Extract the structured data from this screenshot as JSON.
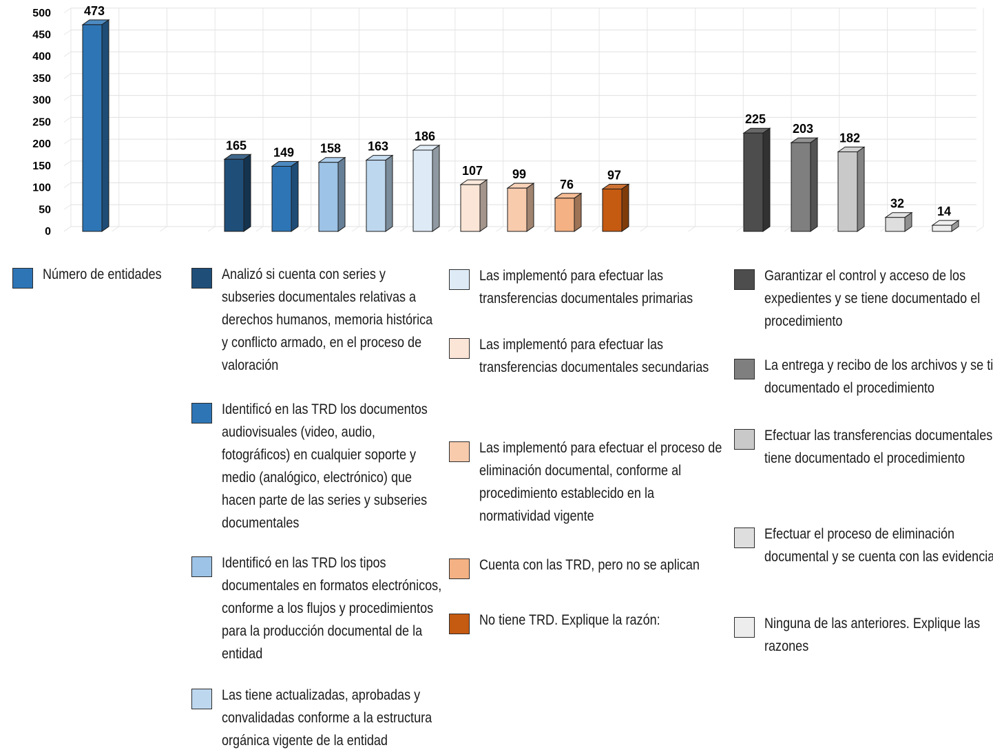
{
  "chart_data": {
    "type": "bar",
    "style": "3d-column",
    "ylim": [
      0,
      500
    ],
    "yticks": [
      0,
      50,
      100,
      150,
      200,
      250,
      300,
      350,
      400,
      450,
      500
    ],
    "grid": true,
    "data_labels": true,
    "legend_placement": "bottom",
    "bars": [
      {
        "series": "Número de entidades",
        "value": 473,
        "color": "#2e75b6"
      },
      {
        "series": "Analizó si cuenta con series y subseries documentales relativas a derechos humanos, memoria histórica y conflicto armado, en el proceso de valoración",
        "value": 165,
        "color": "#1f4e79"
      },
      {
        "series": "Identificó en las TRD los documentos audiovisuales (video, audio, fotográficos) en cualquier soporte y medio (analógico, electrónico) que hacen parte de las series y subseries documentales",
        "value": 149,
        "color": "#2e75b6"
      },
      {
        "series": "Identificó en las TRD los tipos documentales en formatos electrónicos, conforme a los flujos y procedimientos para la producción documental de la entidad",
        "value": 158,
        "color": "#9dc3e6"
      },
      {
        "series": "Las tiene actualizadas, aprobadas y convalidadas conforme a la estructura orgánica vigente de la entidad",
        "value": 163,
        "color": "#bdd7ee"
      },
      {
        "series": "Las implementó para efectuar las transferencias documentales primarias",
        "value": 186,
        "color": "#deebf7"
      },
      {
        "series": "Las implementó para efectuar las transferencias documentales secundarias",
        "value": 107,
        "color": "#fbe5d6"
      },
      {
        "series": "Las implementó para efectuar el proceso de eliminación documental, conforme al procedimiento establecido en la normatividad vigente",
        "value": 99,
        "color": "#f8cbad"
      },
      {
        "series": "Cuenta con las TRD, pero no se aplican",
        "value": 76,
        "color": "#f4b183"
      },
      {
        "series": "No tiene TRD. Explique la razón:",
        "value": 97,
        "color": "#c55a11"
      },
      {
        "series": "Garantizar el control y acceso de los expedientes y se tiene documentado el procedimiento",
        "value": 225,
        "color": "#4d4d4d"
      },
      {
        "series": "La entrega y recibo de los archivos y se tiene documentado el procedimiento",
        "value": 203,
        "color": "#7f7f7f"
      },
      {
        "series": "Efectuar las transferencias documentales y se tiene documentado el procedimiento",
        "value": 182,
        "color": "#c9c9c9"
      },
      {
        "series": "Efectuar el proceso de eliminación documental y se cuenta con las evidencias:",
        "value": 32,
        "color": "#dedede"
      },
      {
        "series": "Ninguna de las anteriores. Explique las razones",
        "value": 14,
        "color": "#ededed"
      }
    ]
  }
}
